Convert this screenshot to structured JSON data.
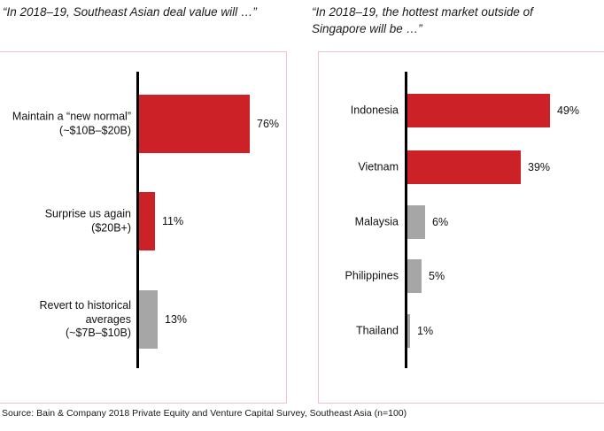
{
  "source": "Source: Bain & Company 2018 Private Equity and Venture Capital Survey, Southeast Asia (n=100)",
  "colors": {
    "bar_red": "#CC2127",
    "bar_gray": "#A6A6A6",
    "axis": "#000000",
    "panel_border": "#EEC4C8"
  },
  "chart_data": [
    {
      "type": "bar",
      "orientation": "horizontal",
      "title": "“In 2018–19, Southeast Asian deal value will …”",
      "title_lines": [
        "“In 2018–19, Southeast Asian deal value will …”"
      ],
      "categories": [
        "Maintain a “new normal” (~$10B–$20B)",
        "Surprise us again ($20B+)",
        "Revert to historical averages (~$7B–$10B)"
      ],
      "category_lines": [
        [
          "Maintain a “new normal”",
          "(~$10B–$20B)"
        ],
        [
          "Surprise us again",
          "($20B+)"
        ],
        [
          "Revert to historical",
          "averages",
          "(~$7B–$10B)"
        ]
      ],
      "values": [
        76,
        11,
        13
      ],
      "value_labels": [
        "76%",
        "11%",
        "13%"
      ],
      "colors": [
        "#CC2127",
        "#CC2127",
        "#A6A6A6"
      ],
      "unit": "%",
      "xlim": [
        0,
        100
      ],
      "grid": false,
      "legend": "none"
    },
    {
      "type": "bar",
      "orientation": "horizontal",
      "title": "“In 2018–19, the hottest market outside of Singapore will be …”",
      "title_lines": [
        "“In 2018–19, the hottest market outside of",
        "Singapore will be …”"
      ],
      "categories": [
        "Indonesia",
        "Vietnam",
        "Malaysia",
        "Philippines",
        "Thailand"
      ],
      "category_lines": [
        [
          "Indonesia"
        ],
        [
          "Vietnam"
        ],
        [
          "Malaysia"
        ],
        [
          "Philippines"
        ],
        [
          "Thailand"
        ]
      ],
      "values": [
        49,
        39,
        6,
        5,
        1
      ],
      "value_labels": [
        "49%",
        "39%",
        "6%",
        "5%",
        "1%"
      ],
      "colors": [
        "#CC2127",
        "#CC2127",
        "#A6A6A6",
        "#A6A6A6",
        "#A6A6A6"
      ],
      "unit": "%",
      "xlim": [
        0,
        100
      ],
      "grid": false,
      "legend": "none"
    }
  ]
}
